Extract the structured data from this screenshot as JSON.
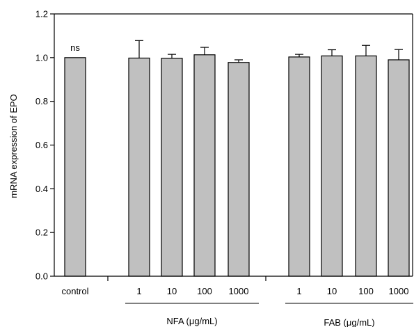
{
  "chart_data": {
    "type": "bar",
    "ylabel": "mRNA expression of EPO",
    "ylim": [
      0,
      1.2
    ],
    "yticks": [
      "0.0",
      "0.2",
      "0.4",
      "0.6",
      "0.8",
      "1.0",
      "1.2"
    ],
    "categories": [
      "control",
      "1",
      "10",
      "100",
      "1000",
      "1",
      "10",
      "100",
      "1000"
    ],
    "groups": [
      {
        "label": "NFA (μg/mL)",
        "category_indices": [
          1,
          2,
          3,
          4
        ]
      },
      {
        "label": "FAB (μg/mL)",
        "category_indices": [
          5,
          6,
          7,
          8
        ]
      }
    ],
    "values": [
      1.0,
      0.998,
      0.997,
      1.013,
      0.978,
      1.003,
      1.008,
      1.008,
      0.99
    ],
    "errors": [
      0,
      0.08,
      0.018,
      0.034,
      0.012,
      0.012,
      0.028,
      0.048,
      0.047
    ],
    "annotations": [
      {
        "category_index": 0,
        "text": "ns"
      }
    ],
    "bar_color": "#c0c0c0",
    "outline_color": "#000000",
    "grid": false
  }
}
